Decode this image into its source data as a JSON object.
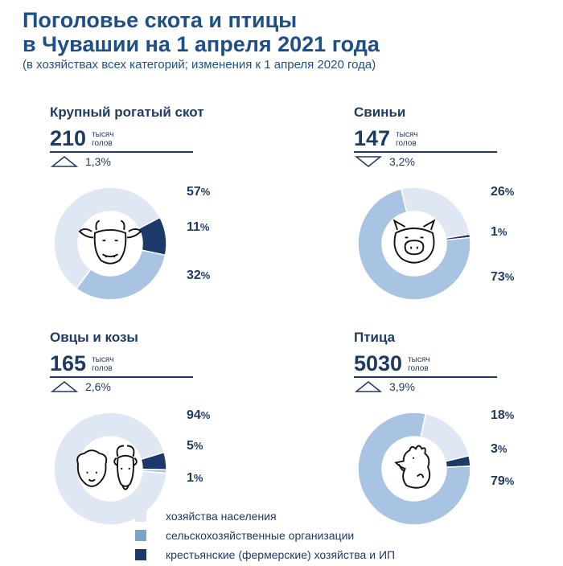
{
  "header": {
    "title_line1": "Поголовье скота и птицы",
    "title_line2": "в Чувашии на 1 апреля 2021 года",
    "subtitle": "(в хозяйствах всех категорий; изменения к 1 апреля 2020 года)"
  },
  "unit_line1": "тысяч",
  "unit_line2": "голов",
  "colors": {
    "households": "#dfe6f4",
    "agri_orgs": "#a9c4e2",
    "farms": "#1b3a6b"
  },
  "chart_data": [
    {
      "type": "pie",
      "title": "Крупный рогатый скот",
      "total": "210",
      "change": "1,3%",
      "change_direction": "up",
      "icon": "cow-icon",
      "slices": [
        {
          "category": "хозяйства населения",
          "value": 57,
          "label": "57"
        },
        {
          "category": "сельскохозяйственные организации",
          "value": 32,
          "label": "32"
        },
        {
          "category": "крестьянские (фермерские) хозяйства и ИП",
          "value": 11,
          "label": "11"
        }
      ]
    },
    {
      "type": "pie",
      "title": "Свиньи",
      "total": "147",
      "change": "3,2%",
      "change_direction": "down",
      "icon": "pig-icon",
      "slices": [
        {
          "category": "хозяйства населения",
          "value": 26,
          "label": "26"
        },
        {
          "category": "сельскохозяйственные организации",
          "value": 73,
          "label": "73"
        },
        {
          "category": "крестьянские (фермерские) хозяйства и ИП",
          "value": 1,
          "label": "1"
        }
      ]
    },
    {
      "type": "pie",
      "title": "Овцы и козы",
      "total": "165",
      "change": "2,6%",
      "change_direction": "up",
      "icon": "sheep-goat-icon",
      "slices": [
        {
          "category": "хозяйства населения",
          "value": 94,
          "label": "94"
        },
        {
          "category": "сельскохозяйственные организации",
          "value": 1,
          "label": "1"
        },
        {
          "category": "крестьянские (фермерские) хозяйства и ИП",
          "value": 5,
          "label": "5"
        }
      ]
    },
    {
      "type": "pie",
      "title": "Птица",
      "total": "5030",
      "change": "3,9%",
      "change_direction": "up",
      "icon": "rooster-icon",
      "slices": [
        {
          "category": "хозяйства населения",
          "value": 18,
          "label": "18"
        },
        {
          "category": "сельскохозяйственные организации",
          "value": 79,
          "label": "79"
        },
        {
          "category": "крестьянские (фермерские) хозяйства и ИП",
          "value": 3,
          "label": "3"
        }
      ]
    }
  ],
  "legend": [
    {
      "label": "хозяйства населения",
      "color": "#dfe6f4"
    },
    {
      "label": "сельскохозяйственные организации",
      "color": "#7ea3c8"
    },
    {
      "label": "крестьянские (фермерские) хозяйства и ИП",
      "color": "#1b3a6b"
    }
  ]
}
